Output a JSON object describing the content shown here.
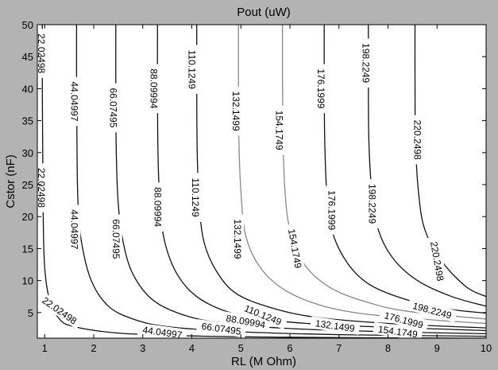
{
  "chart_data": {
    "type": "contour",
    "title": "Pout (uW)",
    "xlabel": "RL (M Ohm)",
    "ylabel": "Cstor (nF)",
    "xlim": [
      0.85,
      10
    ],
    "ylim": [
      1,
      50
    ],
    "xticks": [
      1,
      2,
      3,
      4,
      5,
      6,
      7,
      8,
      9,
      10
    ],
    "yticks": [
      5,
      10,
      15,
      20,
      25,
      30,
      35,
      40,
      45,
      50
    ],
    "grid": false,
    "colors": {
      "background": "#b3b3b3",
      "plot_area": "#ffffff",
      "line_dark": "#111111",
      "line_light": "#888888"
    },
    "levels": [
      {
        "value": "22.02498",
        "shade": "dark",
        "points": [
          [
            0.95,
            50
          ],
          [
            0.95,
            42
          ],
          [
            0.96,
            30
          ],
          [
            0.97,
            20
          ],
          [
            1.0,
            12
          ],
          [
            1.1,
            7
          ],
          [
            1.3,
            4
          ],
          [
            1.6,
            2.8
          ],
          [
            2.5,
            1.8
          ],
          [
            4,
            1.35
          ],
          [
            6,
            1.15
          ],
          [
            8,
            1.05
          ],
          [
            10,
            1.0
          ]
        ],
        "labels": [
          {
            "x": 0.93,
            "y": 45.5,
            "angle": 90
          },
          {
            "x": 0.93,
            "y": 24.5,
            "angle": 90
          },
          {
            "x": 1.3,
            "y": 5.3,
            "angle": 35
          }
        ]
      },
      {
        "value": "44.04997",
        "shade": "dark",
        "points": [
          [
            1.65,
            50
          ],
          [
            1.65,
            42
          ],
          [
            1.66,
            30
          ],
          [
            1.68,
            22
          ],
          [
            1.75,
            16
          ],
          [
            1.95,
            10
          ],
          [
            2.3,
            6
          ],
          [
            2.8,
            4
          ],
          [
            3.5,
            2.8
          ],
          [
            5,
            2.0
          ],
          [
            7,
            1.55
          ],
          [
            10,
            1.3
          ]
        ],
        "labels": [
          {
            "x": 1.6,
            "y": 38.0,
            "angle": 90
          },
          {
            "x": 1.6,
            "y": 18.0,
            "angle": 90
          },
          {
            "x": 3.4,
            "y": 1.9,
            "angle": 8
          }
        ]
      },
      {
        "value": "66.07495",
        "shade": "dark",
        "points": [
          [
            2.45,
            50
          ],
          [
            2.45,
            40
          ],
          [
            2.46,
            30
          ],
          [
            2.5,
            22
          ],
          [
            2.6,
            16
          ],
          [
            2.8,
            11
          ],
          [
            3.2,
            7
          ],
          [
            3.8,
            4.7
          ],
          [
            4.6,
            3.4
          ],
          [
            6,
            2.5
          ],
          [
            8,
            2.0
          ],
          [
            10,
            1.7
          ]
        ],
        "labels": [
          {
            "x": 2.4,
            "y": 37.0,
            "angle": 90
          },
          {
            "x": 2.45,
            "y": 16.5,
            "angle": 90
          },
          {
            "x": 4.6,
            "y": 2.45,
            "angle": 8
          }
        ]
      },
      {
        "value": "88.09994",
        "shade": "dark",
        "points": [
          [
            3.3,
            50
          ],
          [
            3.3,
            40
          ],
          [
            3.31,
            30
          ],
          [
            3.35,
            22
          ],
          [
            3.45,
            16
          ],
          [
            3.7,
            11
          ],
          [
            4.1,
            7.5
          ],
          [
            4.7,
            5.2
          ],
          [
            5.5,
            3.9
          ],
          [
            7,
            3.0
          ],
          [
            10,
            2.2
          ]
        ],
        "labels": [
          {
            "x": 3.22,
            "y": 40.0,
            "angle": 90
          },
          {
            "x": 3.3,
            "y": 21.5,
            "angle": 90
          },
          {
            "x": 5.1,
            "y": 3.6,
            "angle": 10
          }
        ]
      },
      {
        "value": "110.1249",
        "shade": "dark",
        "points": [
          [
            4.1,
            50
          ],
          [
            4.1,
            40
          ],
          [
            4.11,
            30
          ],
          [
            4.15,
            22
          ],
          [
            4.25,
            16
          ],
          [
            4.5,
            11.5
          ],
          [
            4.9,
            8
          ],
          [
            5.6,
            5.8
          ],
          [
            6.5,
            4.3
          ],
          [
            8,
            3.3
          ],
          [
            10,
            2.6
          ]
        ],
        "labels": [
          {
            "x": 4.0,
            "y": 43.0,
            "angle": 90
          },
          {
            "x": 4.07,
            "y": 23.0,
            "angle": 90
          },
          {
            "x": 5.45,
            "y": 4.6,
            "angle": 22
          }
        ]
      },
      {
        "value": "132.1499",
        "shade": "light",
        "points": [
          [
            4.95,
            50
          ],
          [
            4.95,
            42
          ],
          [
            4.96,
            32
          ],
          [
            5.0,
            24
          ],
          [
            5.1,
            17
          ],
          [
            5.4,
            12
          ],
          [
            5.9,
            8.5
          ],
          [
            6.6,
            6.2
          ],
          [
            7.5,
            4.8
          ],
          [
            9,
            3.8
          ],
          [
            10,
            3.3
          ]
        ],
        "labels": [
          {
            "x": 4.9,
            "y": 36.5,
            "angle": 90
          },
          {
            "x": 4.93,
            "y": 16.5,
            "angle": 90
          },
          {
            "x": 6.92,
            "y": 2.9,
            "angle": 8
          }
        ]
      },
      {
        "value": "154.1749",
        "shade": "light",
        "points": [
          [
            5.85,
            50
          ],
          [
            5.85,
            42
          ],
          [
            5.86,
            32
          ],
          [
            5.9,
            24
          ],
          [
            6.0,
            18
          ],
          [
            6.3,
            12.5
          ],
          [
            6.8,
            9
          ],
          [
            7.5,
            6.8
          ],
          [
            8.4,
            5.2
          ],
          [
            10,
            4.0
          ]
        ],
        "labels": [
          {
            "x": 5.78,
            "y": 33.5,
            "angle": 90
          },
          {
            "x": 6.1,
            "y": 15.0,
            "angle": 80
          },
          {
            "x": 8.2,
            "y": 2.0,
            "angle": 8
          }
        ]
      },
      {
        "value": "176.1999",
        "shade": "dark",
        "points": [
          [
            6.7,
            50
          ],
          [
            6.7,
            42
          ],
          [
            6.71,
            32
          ],
          [
            6.75,
            24
          ],
          [
            6.85,
            18
          ],
          [
            7.15,
            13
          ],
          [
            7.6,
            9.5
          ],
          [
            8.3,
            7.2
          ],
          [
            9.2,
            5.6
          ],
          [
            10,
            4.9
          ]
        ],
        "labels": [
          {
            "x": 6.63,
            "y": 40.0,
            "angle": 90
          },
          {
            "x": 6.85,
            "y": 21.0,
            "angle": 90
          },
          {
            "x": 8.32,
            "y": 3.8,
            "angle": 15
          }
        ]
      },
      {
        "value": "198.2249",
        "shade": "dark",
        "points": [
          [
            7.6,
            50
          ],
          [
            7.6,
            42
          ],
          [
            7.61,
            32
          ],
          [
            7.67,
            24
          ],
          [
            7.8,
            18
          ],
          [
            8.1,
            13.5
          ],
          [
            8.6,
            10
          ],
          [
            9.3,
            7.5
          ],
          [
            10,
            6.0
          ]
        ],
        "labels": [
          {
            "x": 7.55,
            "y": 44.0,
            "angle": 90
          },
          {
            "x": 7.68,
            "y": 22.0,
            "angle": 90
          },
          {
            "x": 8.9,
            "y": 5.3,
            "angle": 15
          }
        ]
      },
      {
        "value": "220.2498",
        "shade": "dark",
        "points": [
          [
            8.55,
            50
          ],
          [
            8.55,
            42
          ],
          [
            8.56,
            32
          ],
          [
            8.62,
            24
          ],
          [
            8.75,
            18
          ],
          [
            9.1,
            13
          ],
          [
            9.6,
            9
          ],
          [
            10,
            7.5
          ]
        ],
        "labels": [
          {
            "x": 8.6,
            "y": 32.0,
            "angle": 90
          },
          {
            "x": 9.0,
            "y": 13.0,
            "angle": 80
          }
        ]
      }
    ]
  }
}
